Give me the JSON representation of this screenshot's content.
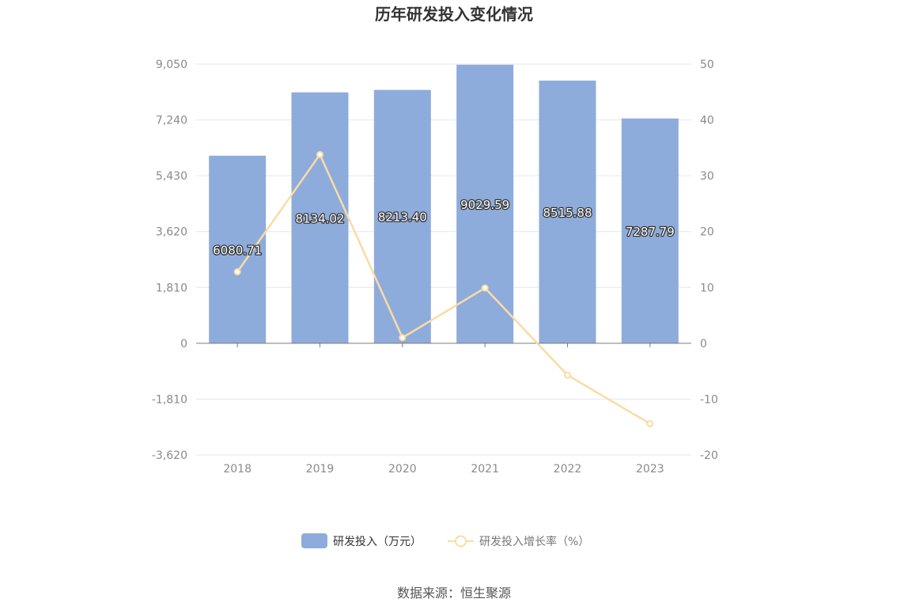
{
  "chart_data": {
    "type": "bar",
    "title": "历年研发投入变化情况",
    "categories": [
      "2018",
      "2019",
      "2020",
      "2021",
      "2022",
      "2023"
    ],
    "series": [
      {
        "name": "研发投入（万元）",
        "type": "bar",
        "axis": "left",
        "color": "#8eacdb",
        "values": [
          6080.71,
          8134.02,
          8213.4,
          9029.59,
          8515.88,
          7287.79
        ],
        "labels": [
          "6080.71",
          "8134.02",
          "8213.40",
          "9029.59",
          "8515.88",
          "7287.79"
        ]
      },
      {
        "name": "研发投入增长率（%）",
        "type": "line",
        "axis": "right",
        "color": "#f9dca4",
        "values": [
          12.8,
          33.8,
          1.0,
          9.9,
          -5.7,
          -14.4
        ]
      }
    ],
    "y_left": {
      "ylim": [
        -3620,
        9050
      ],
      "ticks": [
        9050,
        7240,
        5430,
        3620,
        1810,
        0,
        -1810,
        -3620
      ],
      "tick_labels": [
        "9,050",
        "7,240",
        "5,430",
        "3,620",
        "1,810",
        "0",
        "-1,810",
        "-3,620"
      ]
    },
    "y_right": {
      "ylim": [
        -20,
        50
      ],
      "ticks": [
        50,
        40,
        30,
        20,
        10,
        0,
        -10,
        -20
      ],
      "tick_labels": [
        "50",
        "40",
        "30",
        "20",
        "10",
        "0",
        "-10",
        "-20"
      ]
    },
    "grid": true,
    "legend_position": "bottom"
  },
  "legend": {
    "bar_label": "研发投入（万元）",
    "line_label": "研发投入增长率（%）"
  },
  "source_text": "数据来源：恒生聚源"
}
